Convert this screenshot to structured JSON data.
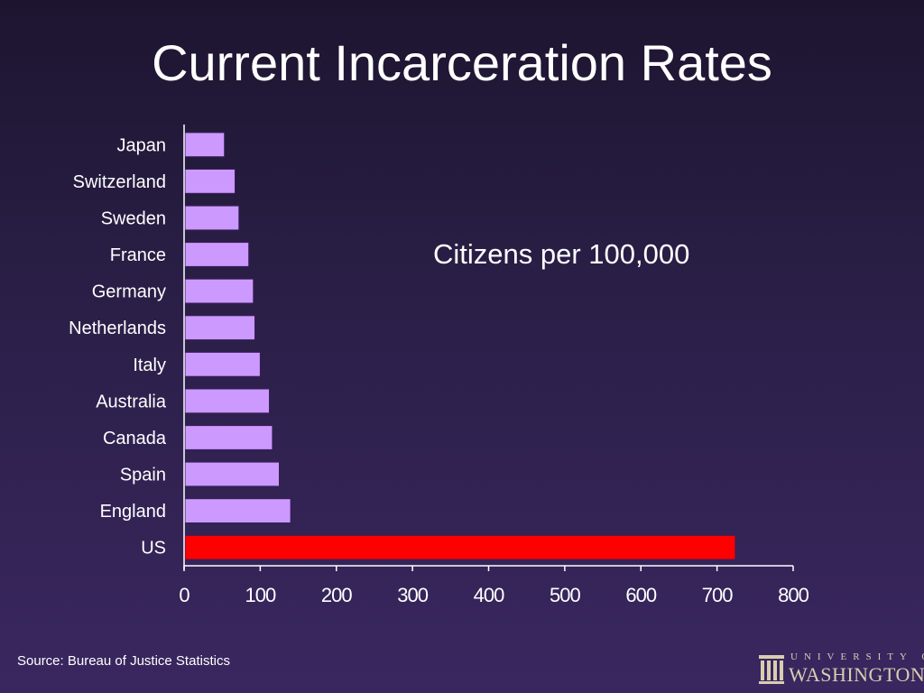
{
  "slide": {
    "title": "Current Incarceration Rates",
    "annotation": "Citizens per 100,000",
    "source": "Source: Bureau of Justice Statistics",
    "logo": {
      "line1": "UNIVERSITY OF",
      "line2": "WASHINGTON"
    }
  },
  "colors": {
    "bar": "#cc99ff",
    "highlight_bar": "#ff0000",
    "bar_outline": "#3a1f5c",
    "axis": "#ffffff"
  },
  "chart_data": {
    "type": "bar",
    "orientation": "horizontal",
    "categories": [
      "Japan",
      "Switzerland",
      "Sweden",
      "France",
      "Germany",
      "Netherlands",
      "Italy",
      "Australia",
      "Canada",
      "Spain",
      "England",
      "US"
    ],
    "values": [
      53,
      67,
      72,
      85,
      91,
      93,
      100,
      112,
      116,
      125,
      140,
      724
    ],
    "highlight": "US",
    "xlim": [
      0,
      800
    ],
    "xticks": [
      0,
      100,
      200,
      300,
      400,
      500,
      600,
      700,
      800
    ],
    "title": "",
    "xlabel": "",
    "ylabel": "",
    "grid": false,
    "legend": false
  }
}
